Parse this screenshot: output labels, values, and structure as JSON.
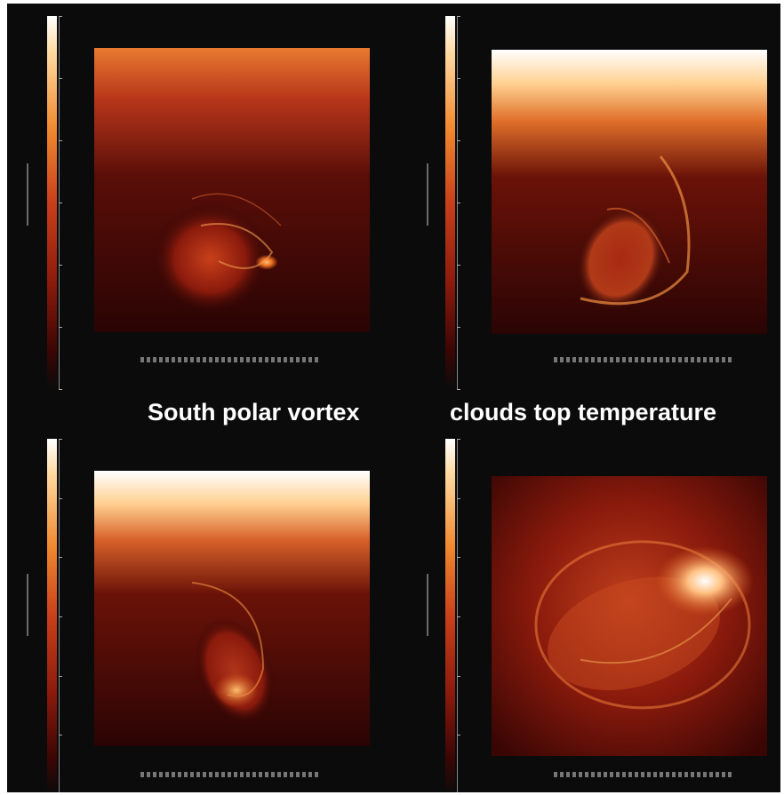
{
  "labels": {
    "left": "South polar vortex",
    "right": "clouds top temperature"
  },
  "colors": {
    "background": "#0b0b0b",
    "hot": "#ffffff",
    "warm": "#f08a30",
    "mid": "#c8401a",
    "cool": "#3a0604"
  }
}
